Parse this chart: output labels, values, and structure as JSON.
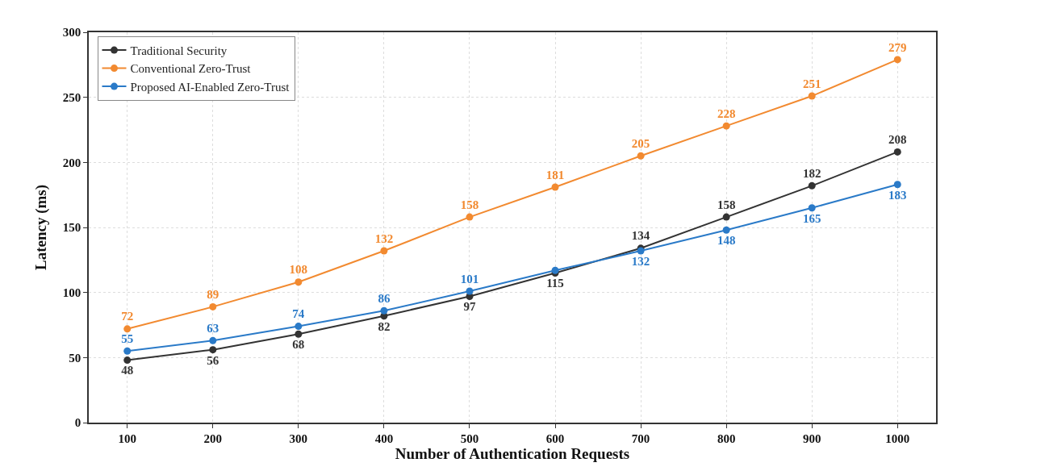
{
  "chart_data": {
    "type": "line",
    "xlabel": "Number of Authentication Requests",
    "ylabel": "Latency (ms)",
    "x": [
      100,
      200,
      300,
      400,
      500,
      600,
      700,
      800,
      900,
      1000
    ],
    "series": [
      {
        "name": "Traditional Security",
        "color": "#333333",
        "values": [
          48,
          56,
          68,
          82,
          97,
          115,
          134,
          158,
          182,
          208
        ],
        "value_labels": [
          "48",
          "56",
          "68",
          "82",
          "97",
          "115",
          "134",
          "158",
          "182",
          "208"
        ]
      },
      {
        "name": "Conventional Zero-Trust",
        "color": "#f28a30",
        "values": [
          72,
          89,
          108,
          132,
          158,
          181,
          205,
          228,
          251,
          279
        ],
        "value_labels": [
          "72",
          "89",
          "108",
          "132",
          "158",
          "181",
          "205",
          "228",
          "251",
          "279"
        ]
      },
      {
        "name": "Proposed AI-Enabled Zero-Trust",
        "color": "#2a7ac8",
        "values": [
          55,
          63,
          74,
          86,
          101,
          117,
          132,
          148,
          165,
          183
        ],
        "value_labels": [
          "55",
          "63",
          "74",
          "86",
          "101",
          null,
          "132",
          "148",
          "165",
          "183"
        ]
      }
    ],
    "xlim": [
      55,
      1045
    ],
    "xticks": [
      100,
      200,
      300,
      400,
      500,
      600,
      700,
      800,
      900,
      1000
    ],
    "ylim": [
      0,
      300
    ],
    "yticks": [
      0,
      50,
      100,
      150,
      200,
      250,
      300
    ],
    "grid": true,
    "legend": "top left",
    "marker": "circle",
    "line_style": "solid"
  }
}
